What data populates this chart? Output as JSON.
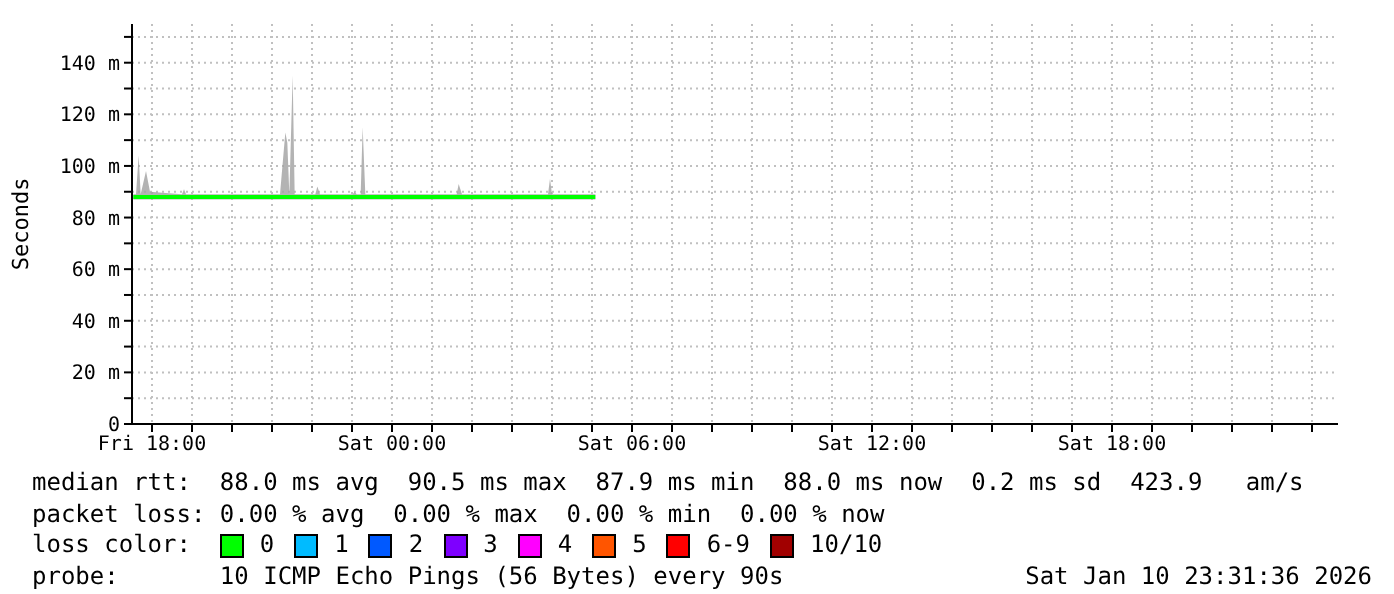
{
  "chart_data": {
    "type": "line",
    "ylabel": "Seconds",
    "legend_title": "loss color:",
    "legend": "bottom",
    "grid": true,
    "marker": "none",
    "line_style": "solid",
    "x": [
      "2026-01-09T17:32",
      "2026-01-09T17:36",
      "2026-01-09T17:40",
      "2026-01-09T17:43",
      "2026-01-09T17:51",
      "2026-01-09T17:57",
      "2026-01-09T18:45",
      "2026-01-09T18:48",
      "2026-01-09T18:51",
      "2026-01-09T19:30",
      "2026-01-09T21:12",
      "2026-01-09T21:20",
      "2026-01-09T21:23",
      "2026-01-09T21:26",
      "2026-01-09T21:31",
      "2026-01-09T21:34",
      "2026-01-09T22:05",
      "2026-01-09T22:08",
      "2026-01-09T22:12",
      "2026-01-09T23:01",
      "2026-01-09T23:04",
      "2026-01-09T23:07",
      "2026-01-09T23:13",
      "2026-01-09T23:16",
      "2026-01-09T23:20",
      "2026-01-10T01:37",
      "2026-01-10T01:40",
      "2026-01-10T01:45",
      "2026-01-10T03:54",
      "2026-01-10T03:57",
      "2026-01-10T04:00",
      "2026-01-10T05:05"
    ],
    "xlim": [
      "2026-01-09T17:30",
      "2026-01-10T23:39"
    ],
    "xticks": [
      {
        "value": "2026-01-09T18:00",
        "label": "Fri 18:00"
      },
      {
        "value": "2026-01-09T19:00",
        "label": null
      },
      {
        "value": "2026-01-09T20:00",
        "label": null
      },
      {
        "value": "2026-01-09T21:00",
        "label": null
      },
      {
        "value": "2026-01-09T22:00",
        "label": null
      },
      {
        "value": "2026-01-09T23:00",
        "label": null
      },
      {
        "value": "2026-01-10T00:00",
        "label": "Sat 00:00"
      },
      {
        "value": "2026-01-10T01:00",
        "label": null
      },
      {
        "value": "2026-01-10T02:00",
        "label": null
      },
      {
        "value": "2026-01-10T03:00",
        "label": null
      },
      {
        "value": "2026-01-10T04:00",
        "label": null
      },
      {
        "value": "2026-01-10T05:00",
        "label": null
      },
      {
        "value": "2026-01-10T06:00",
        "label": "Sat 06:00"
      },
      {
        "value": "2026-01-10T07:00",
        "label": null
      },
      {
        "value": "2026-01-10T08:00",
        "label": null
      },
      {
        "value": "2026-01-10T09:00",
        "label": null
      },
      {
        "value": "2026-01-10T10:00",
        "label": null
      },
      {
        "value": "2026-01-10T11:00",
        "label": null
      },
      {
        "value": "2026-01-10T12:00",
        "label": "Sat 12:00"
      },
      {
        "value": "2026-01-10T13:00",
        "label": null
      },
      {
        "value": "2026-01-10T14:00",
        "label": null
      },
      {
        "value": "2026-01-10T15:00",
        "label": null
      },
      {
        "value": "2026-01-10T16:00",
        "label": null
      },
      {
        "value": "2026-01-10T17:00",
        "label": null
      },
      {
        "value": "2026-01-10T18:00",
        "label": "Sat 18:00"
      },
      {
        "value": "2026-01-10T19:00",
        "label": null
      },
      {
        "value": "2026-01-10T20:00",
        "label": null
      },
      {
        "value": "2026-01-10T21:00",
        "label": null
      },
      {
        "value": "2026-01-10T22:00",
        "label": null
      },
      {
        "value": "2026-01-10T23:00",
        "label": null
      }
    ],
    "ylim": [
      0,
      155
    ],
    "yticks": [
      0,
      {
        "value": 10,
        "label": null
      },
      {
        "value": 20,
        "label": "20 m"
      },
      {
        "value": 30,
        "label": null
      },
      {
        "value": 40,
        "label": "40 m"
      },
      {
        "value": 50,
        "label": null
      },
      {
        "value": 60,
        "label": "60 m"
      },
      {
        "value": 70,
        "label": null
      },
      {
        "value": 80,
        "label": "80 m"
      },
      {
        "value": 90,
        "label": null
      },
      {
        "value": 100,
        "label": "100 m"
      },
      {
        "value": 110,
        "label": null
      },
      {
        "value": 120,
        "label": "120 m"
      },
      {
        "value": 130,
        "label": null
      },
      {
        "value": 140,
        "label": "140 m"
      },
      {
        "value": 150,
        "label": null
      }
    ],
    "series": [
      {
        "name": "0",
        "color": "#00ff00",
        "values": [
          88,
          88,
          88,
          88,
          88,
          88,
          88,
          88,
          88,
          88,
          88,
          88,
          88,
          88,
          88,
          88,
          88,
          88,
          88,
          88,
          88,
          88,
          88,
          88,
          88,
          88,
          88,
          88,
          88,
          88,
          88,
          88
        ],
        "lower": [
          87,
          87,
          87,
          87,
          87,
          87,
          87,
          87,
          87,
          87,
          87,
          87,
          87,
          87,
          87,
          87,
          87,
          87,
          87,
          87,
          87,
          87,
          87,
          87,
          87,
          87,
          87,
          87,
          87,
          87,
          87,
          87
        ],
        "upper": [
          89,
          89,
          104,
          89,
          98,
          90,
          89,
          91,
          89,
          89,
          89,
          113,
          109,
          89,
          135,
          89,
          89,
          92,
          89,
          89,
          90,
          89,
          89,
          115,
          89,
          89,
          93,
          89,
          89,
          95,
          89,
          89
        ]
      },
      {
        "name": "1",
        "color": "#00bbff",
        "values": [
          null,
          null,
          null,
          null,
          null,
          null,
          null,
          null,
          null,
          null,
          null,
          null,
          null,
          null,
          null,
          null,
          null,
          null,
          null,
          null,
          null,
          null,
          null,
          null,
          null,
          null,
          null,
          null,
          null,
          null,
          null,
          null
        ]
      },
      {
        "name": "2",
        "color": "#0059ff",
        "values": [
          null,
          null,
          null,
          null,
          null,
          null,
          null,
          null,
          null,
          null,
          null,
          null,
          null,
          null,
          null,
          null,
          null,
          null,
          null,
          null,
          null,
          null,
          null,
          null,
          null,
          null,
          null,
          null,
          null,
          null,
          null,
          null
        ]
      },
      {
        "name": "3",
        "color": "#7e00ff",
        "values": [
          null,
          null,
          null,
          null,
          null,
          null,
          null,
          null,
          null,
          null,
          null,
          null,
          null,
          null,
          null,
          null,
          null,
          null,
          null,
          null,
          null,
          null,
          null,
          null,
          null,
          null,
          null,
          null,
          null,
          null,
          null,
          null
        ]
      },
      {
        "name": "4",
        "color": "#ff00ff",
        "values": [
          null,
          null,
          null,
          null,
          null,
          null,
          null,
          null,
          null,
          null,
          null,
          null,
          null,
          null,
          null,
          null,
          null,
          null,
          null,
          null,
          null,
          null,
          null,
          null,
          null,
          null,
          null,
          null,
          null,
          null,
          null,
          null
        ]
      },
      {
        "name": "5",
        "color": "#ff5500",
        "values": [
          null,
          null,
          null,
          null,
          null,
          null,
          null,
          null,
          null,
          null,
          null,
          null,
          null,
          null,
          null,
          null,
          null,
          null,
          null,
          null,
          null,
          null,
          null,
          null,
          null,
          null,
          null,
          null,
          null,
          null,
          null,
          null
        ]
      },
      {
        "name": "6-9",
        "color": "#ff0000",
        "values": [
          null,
          null,
          null,
          null,
          null,
          null,
          null,
          null,
          null,
          null,
          null,
          null,
          null,
          null,
          null,
          null,
          null,
          null,
          null,
          null,
          null,
          null,
          null,
          null,
          null,
          null,
          null,
          null,
          null,
          null,
          null,
          null
        ]
      },
      {
        "name": "10/10",
        "color": "#a10000",
        "values": [
          null,
          null,
          null,
          null,
          null,
          null,
          null,
          null,
          null,
          null,
          null,
          null,
          null,
          null,
          null,
          null,
          null,
          null,
          null,
          null,
          null,
          null,
          null,
          null,
          null,
          null,
          null,
          null,
          null,
          null,
          null,
          null
        ]
      }
    ],
    "annotations": [
      "median rtt:  88.0 ms avg  90.5 ms max  87.9 ms min  88.0 ms now  0.2 ms sd  423.9   am/s",
      "packet loss: 0.00 % avg  0.00 % max  0.00 % min  0.00 % now",
      "probe:       10 ICMP Echo Pings (56 Bytes) every 90s",
      "Sat Jan 10 23:31:36 2026"
    ]
  }
}
